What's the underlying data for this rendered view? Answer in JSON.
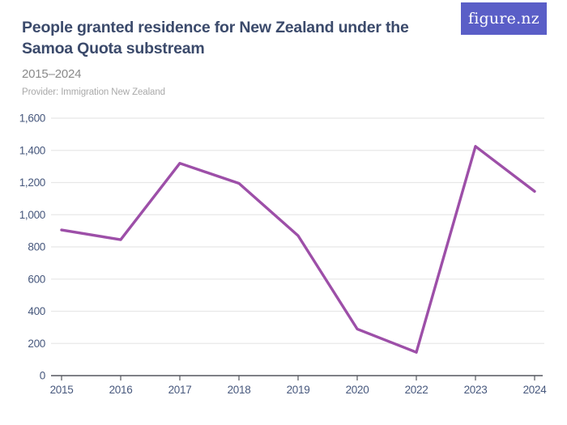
{
  "header": {
    "title": "People granted residence for New Zealand under the Samoa Quota substream",
    "subtitle": "2015–2024",
    "provider": "Provider: Immigration New Zealand",
    "logo_text": "figure.nz"
  },
  "colors": {
    "title": "#3b4a6b",
    "subtitle": "#8a8a8a",
    "provider": "#a9a9a9",
    "logo_background": "#5a5ec7",
    "logo_text": "#ffffff",
    "line": "#9d4fa8",
    "gridline": "#e8e8e8",
    "axis": "#54575e",
    "axis_label": "#47587d"
  },
  "chart_data": {
    "type": "line",
    "title": "People granted residence for New Zealand under the Samoa Quota substream",
    "subtitle": "2015–2024",
    "categories": [
      "2015",
      "2016",
      "2017",
      "2018",
      "2019",
      "2020",
      "2022",
      "2023",
      "2024"
    ],
    "values": [
      905,
      845,
      1320,
      1195,
      870,
      290,
      145,
      1425,
      1145
    ],
    "series_name": "People granted residence",
    "xlabel": "",
    "ylabel": "",
    "ylim": [
      0,
      1600
    ],
    "ytick_values": [
      0,
      200,
      400,
      600,
      800,
      1000,
      1200,
      1400,
      1600
    ],
    "ytick_labels": [
      "0",
      "200",
      "400",
      "600",
      "800",
      "1,000",
      "1,200",
      "1,400",
      "1,600"
    ],
    "grid": "horizontal",
    "legend": "none",
    "note": "no data point for 2021",
    "line_color": "#9d4fa8"
  }
}
